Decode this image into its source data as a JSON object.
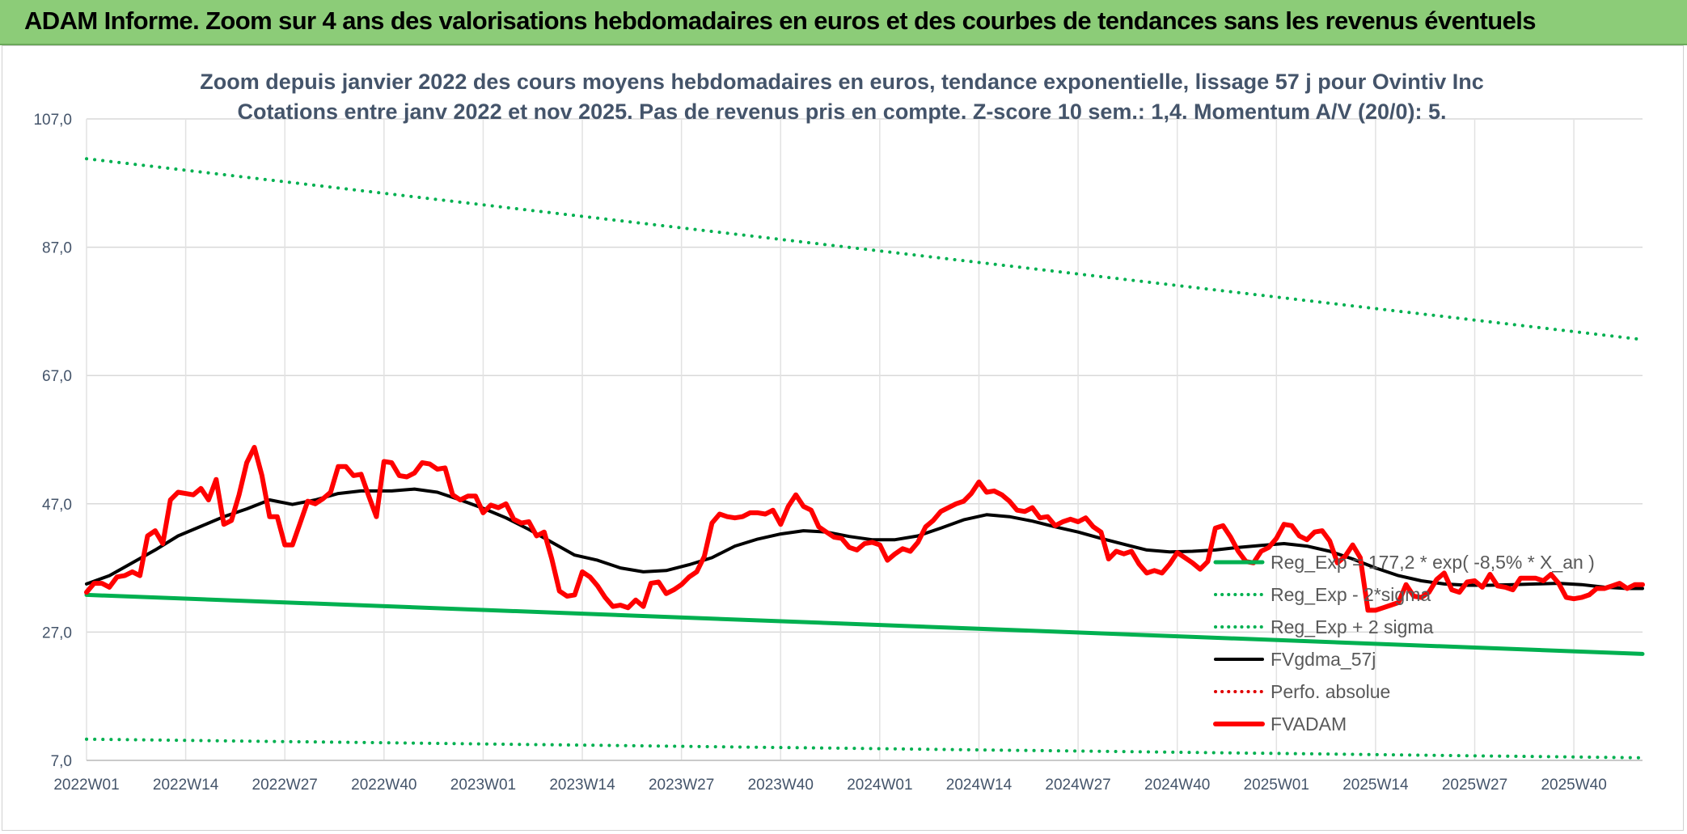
{
  "banner": {
    "title": "ADAM Informe. Zoom sur 4 ans des valorisations hebdomadaires en euros et des courbes de tendances sans les revenus éventuels"
  },
  "chart_data": {
    "type": "line",
    "title": "Zoom depuis janvier 2022 des cours moyens hebdomadaires en euros, tendance exponentielle, lissage 57 j pour Ovintiv Inc",
    "subtitle": "Cotations entre janv 2022 et nov 2025. Pas de revenus pris en compte. Z-score 10 sem.: 1,4. Momentum A/V (20/0): 5.",
    "xlabel": "",
    "ylabel": "",
    "ylim": [
      7,
      107
    ],
    "yticks": [
      "107,0",
      "87,0",
      "67,0",
      "47,0",
      "27,0",
      "7,0"
    ],
    "ytick_values": [
      107,
      87,
      67,
      47,
      27,
      7
    ],
    "x_categories": [
      "2022W01",
      "2022W14",
      "2022W27",
      "2022W40",
      "2023W01",
      "2023W14",
      "2023W27",
      "2023W40",
      "2024W01",
      "2024W14",
      "2024W27",
      "2024W40",
      "2025W01",
      "2025W14",
      "2025W27",
      "2025W40"
    ],
    "x_tick_weeks": [
      0,
      13,
      26,
      39,
      52,
      65,
      78,
      91,
      104,
      117,
      130,
      143,
      156,
      169,
      182,
      195
    ],
    "x_max_week": 204,
    "grid": true,
    "legend_position": "right-inside",
    "series": [
      {
        "name": "Reg_Exp = 177,2 * exp( -8,5% * X_an )",
        "style": "solid",
        "color": "#00b050",
        "width": 5,
        "points": [
          [
            0,
            32.8
          ],
          [
            204,
            23.6
          ]
        ]
      },
      {
        "name": "Reg_Exp - 2*sigma",
        "style": "dotted",
        "color": "#00b050",
        "width": 4,
        "points": [
          [
            0,
            10.3
          ],
          [
            204,
            7.4
          ]
        ]
      },
      {
        "name": "Reg_Exp + 2 sigma",
        "style": "dotted",
        "color": "#00b050",
        "width": 4,
        "points": [
          [
            0,
            100.8
          ],
          [
            204,
            72.6
          ]
        ]
      },
      {
        "name": "FVgdma_57j",
        "style": "solid",
        "color": "#000000",
        "width": 4,
        "points": [
          [
            0,
            34.5
          ],
          [
            3,
            35.8
          ],
          [
            6,
            37.8
          ],
          [
            9,
            39.8
          ],
          [
            12,
            42.0
          ],
          [
            15,
            43.5
          ],
          [
            18,
            45.0
          ],
          [
            21,
            46.2
          ],
          [
            24,
            47.6
          ],
          [
            27,
            46.9
          ],
          [
            30,
            47.6
          ],
          [
            33,
            48.6
          ],
          [
            36,
            49.0
          ],
          [
            40,
            49.0
          ],
          [
            43,
            49.3
          ],
          [
            46,
            48.8
          ],
          [
            49,
            47.6
          ],
          [
            52,
            46.3
          ],
          [
            55,
            44.8
          ],
          [
            58,
            43.0
          ],
          [
            61,
            41.0
          ],
          [
            64,
            39.0
          ],
          [
            67,
            38.2
          ],
          [
            70,
            37.0
          ],
          [
            73,
            36.4
          ],
          [
            76,
            36.6
          ],
          [
            79,
            37.5
          ],
          [
            82,
            38.6
          ],
          [
            85,
            40.4
          ],
          [
            88,
            41.5
          ],
          [
            91,
            42.3
          ],
          [
            94,
            42.8
          ],
          [
            97,
            42.6
          ],
          [
            100,
            41.9
          ],
          [
            103,
            41.4
          ],
          [
            106,
            41.4
          ],
          [
            109,
            42.0
          ],
          [
            112,
            43.2
          ],
          [
            115,
            44.5
          ],
          [
            118,
            45.3
          ],
          [
            121,
            45.0
          ],
          [
            124,
            44.3
          ],
          [
            127,
            43.4
          ],
          [
            130,
            42.6
          ],
          [
            133,
            41.6
          ],
          [
            136,
            40.7
          ],
          [
            139,
            39.8
          ],
          [
            142,
            39.5
          ],
          [
            145,
            39.6
          ],
          [
            148,
            39.8
          ],
          [
            151,
            40.2
          ],
          [
            154,
            40.5
          ],
          [
            157,
            40.8
          ],
          [
            160,
            40.4
          ],
          [
            163,
            39.6
          ],
          [
            166,
            38.4
          ],
          [
            169,
            37.0
          ],
          [
            172,
            35.8
          ],
          [
            175,
            35.0
          ],
          [
            178,
            34.5
          ],
          [
            181,
            34.3
          ],
          [
            184,
            34.3
          ],
          [
            187,
            34.4
          ],
          [
            190,
            34.5
          ],
          [
            193,
            34.6
          ],
          [
            196,
            34.4
          ],
          [
            199,
            34.0
          ],
          [
            202,
            33.8
          ],
          [
            204,
            33.8
          ]
        ]
      },
      {
        "name": "Perfo. absolue",
        "style": "dotted",
        "color": "#e00000",
        "width": 4,
        "points": []
      },
      {
        "name": "FVADAM",
        "style": "solid",
        "color": "#ff0000",
        "width": 6,
        "points": [
          [
            0,
            33.2
          ],
          [
            1,
            34.6
          ],
          [
            2,
            34.6
          ],
          [
            3,
            34.0
          ],
          [
            4,
            35.6
          ],
          [
            5,
            35.8
          ],
          [
            6,
            36.4
          ],
          [
            7,
            35.8
          ],
          [
            8,
            42.0
          ],
          [
            9,
            42.8
          ],
          [
            10,
            40.8
          ],
          [
            11,
            47.6
          ],
          [
            12,
            48.8
          ],
          [
            13,
            48.6
          ],
          [
            14,
            48.4
          ],
          [
            15,
            49.4
          ],
          [
            16,
            47.6
          ],
          [
            17,
            50.8
          ],
          [
            18,
            43.8
          ],
          [
            19,
            44.4
          ],
          [
            20,
            48.4
          ],
          [
            21,
            53.4
          ],
          [
            22,
            55.8
          ],
          [
            23,
            51.4
          ],
          [
            24,
            45.0
          ],
          [
            25,
            45.0
          ],
          [
            26,
            40.6
          ],
          [
            27,
            40.6
          ],
          [
            28,
            44.0
          ],
          [
            29,
            47.4
          ],
          [
            30,
            47.0
          ],
          [
            31,
            47.8
          ],
          [
            32,
            48.8
          ],
          [
            33,
            52.8
          ],
          [
            34,
            52.8
          ],
          [
            35,
            51.4
          ],
          [
            36,
            51.6
          ],
          [
            37,
            48.2
          ],
          [
            38,
            45.0
          ],
          [
            39,
            53.6
          ],
          [
            40,
            53.4
          ],
          [
            41,
            51.4
          ],
          [
            42,
            51.2
          ],
          [
            43,
            51.8
          ],
          [
            44,
            53.4
          ],
          [
            45,
            53.2
          ],
          [
            46,
            52.4
          ],
          [
            47,
            52.6
          ],
          [
            48,
            48.4
          ],
          [
            49,
            47.6
          ],
          [
            50,
            48.2
          ],
          [
            51,
            48.2
          ],
          [
            52,
            45.6
          ],
          [
            53,
            46.8
          ],
          [
            54,
            46.4
          ],
          [
            55,
            47.0
          ],
          [
            56,
            44.6
          ],
          [
            57,
            44.0
          ],
          [
            58,
            44.2
          ],
          [
            59,
            42.0
          ],
          [
            60,
            42.6
          ],
          [
            61,
            38.4
          ],
          [
            62,
            33.4
          ],
          [
            63,
            32.6
          ],
          [
            64,
            32.8
          ],
          [
            65,
            36.4
          ],
          [
            66,
            35.6
          ],
          [
            67,
            34.2
          ],
          [
            68,
            32.4
          ],
          [
            69,
            31.0
          ],
          [
            70,
            31.2
          ],
          [
            71,
            30.8
          ],
          [
            72,
            32.0
          ],
          [
            73,
            31.0
          ],
          [
            74,
            34.6
          ],
          [
            75,
            34.8
          ],
          [
            76,
            33.0
          ],
          [
            77,
            33.6
          ],
          [
            78,
            34.4
          ],
          [
            79,
            35.6
          ],
          [
            80,
            36.4
          ],
          [
            81,
            38.8
          ],
          [
            82,
            44.0
          ],
          [
            83,
            45.4
          ],
          [
            84,
            45.0
          ],
          [
            85,
            44.8
          ],
          [
            86,
            45.0
          ],
          [
            87,
            45.6
          ],
          [
            88,
            45.6
          ],
          [
            89,
            45.4
          ],
          [
            90,
            46.0
          ],
          [
            91,
            43.8
          ],
          [
            92,
            46.6
          ],
          [
            93,
            48.4
          ],
          [
            94,
            46.6
          ],
          [
            95,
            46.0
          ],
          [
            96,
            43.4
          ],
          [
            97,
            42.6
          ],
          [
            98,
            41.8
          ],
          [
            99,
            41.6
          ],
          [
            100,
            40.2
          ],
          [
            101,
            39.8
          ],
          [
            102,
            40.8
          ],
          [
            103,
            41.0
          ],
          [
            104,
            40.6
          ],
          [
            105,
            38.2
          ],
          [
            106,
            39.2
          ],
          [
            107,
            40.0
          ],
          [
            108,
            39.6
          ],
          [
            109,
            41.0
          ],
          [
            110,
            43.4
          ],
          [
            111,
            44.4
          ],
          [
            112,
            45.8
          ],
          [
            113,
            46.4
          ],
          [
            114,
            47.0
          ],
          [
            115,
            47.4
          ],
          [
            116,
            48.6
          ],
          [
            117,
            50.4
          ],
          [
            118,
            48.8
          ],
          [
            119,
            49.0
          ],
          [
            120,
            48.4
          ],
          [
            121,
            47.4
          ],
          [
            122,
            46.0
          ],
          [
            123,
            45.8
          ],
          [
            124,
            46.4
          ],
          [
            125,
            44.8
          ],
          [
            126,
            45.0
          ],
          [
            127,
            43.6
          ],
          [
            128,
            44.2
          ],
          [
            129,
            44.6
          ],
          [
            130,
            44.2
          ],
          [
            131,
            44.8
          ],
          [
            132,
            43.4
          ],
          [
            133,
            42.6
          ],
          [
            134,
            38.4
          ],
          [
            135,
            39.6
          ],
          [
            136,
            39.2
          ],
          [
            137,
            39.6
          ],
          [
            138,
            37.6
          ],
          [
            139,
            36.2
          ],
          [
            140,
            36.6
          ],
          [
            141,
            36.2
          ],
          [
            142,
            37.6
          ],
          [
            143,
            39.4
          ],
          [
            144,
            38.6
          ],
          [
            145,
            37.8
          ],
          [
            146,
            36.8
          ],
          [
            147,
            38.0
          ],
          [
            148,
            43.2
          ],
          [
            149,
            43.6
          ],
          [
            150,
            41.8
          ],
          [
            151,
            39.6
          ],
          [
            152,
            38.0
          ],
          [
            153,
            37.8
          ],
          [
            154,
            39.6
          ],
          [
            155,
            40.2
          ],
          [
            156,
            41.6
          ],
          [
            157,
            43.8
          ],
          [
            158,
            43.6
          ],
          [
            159,
            42.0
          ],
          [
            160,
            41.4
          ],
          [
            161,
            42.6
          ],
          [
            162,
            42.8
          ],
          [
            163,
            41.2
          ],
          [
            164,
            37.8
          ],
          [
            165,
            38.8
          ],
          [
            166,
            40.6
          ],
          [
            167,
            38.6
          ],
          [
            168,
            30.4
          ],
          [
            169,
            30.4
          ],
          [
            170,
            30.8
          ],
          [
            171,
            31.2
          ],
          [
            172,
            31.6
          ],
          [
            173,
            34.4
          ],
          [
            174,
            32.6
          ],
          [
            175,
            32.4
          ],
          [
            176,
            33.2
          ],
          [
            177,
            35.2
          ],
          [
            178,
            36.2
          ],
          [
            179,
            33.6
          ],
          [
            180,
            33.2
          ],
          [
            181,
            34.8
          ],
          [
            182,
            35.0
          ],
          [
            183,
            34.0
          ],
          [
            184,
            36.0
          ],
          [
            185,
            34.2
          ],
          [
            186,
            34.0
          ],
          [
            187,
            33.6
          ],
          [
            188,
            35.4
          ],
          [
            189,
            35.4
          ],
          [
            190,
            35.4
          ],
          [
            191,
            35.0
          ],
          [
            192,
            36.0
          ],
          [
            193,
            34.6
          ],
          [
            194,
            32.4
          ],
          [
            195,
            32.2
          ],
          [
            196,
            32.4
          ],
          [
            197,
            32.8
          ],
          [
            198,
            33.8
          ],
          [
            199,
            33.8
          ],
          [
            200,
            34.2
          ],
          [
            201,
            34.6
          ],
          [
            202,
            33.8
          ],
          [
            203,
            34.4
          ],
          [
            204,
            34.4
          ]
        ]
      }
    ]
  }
}
